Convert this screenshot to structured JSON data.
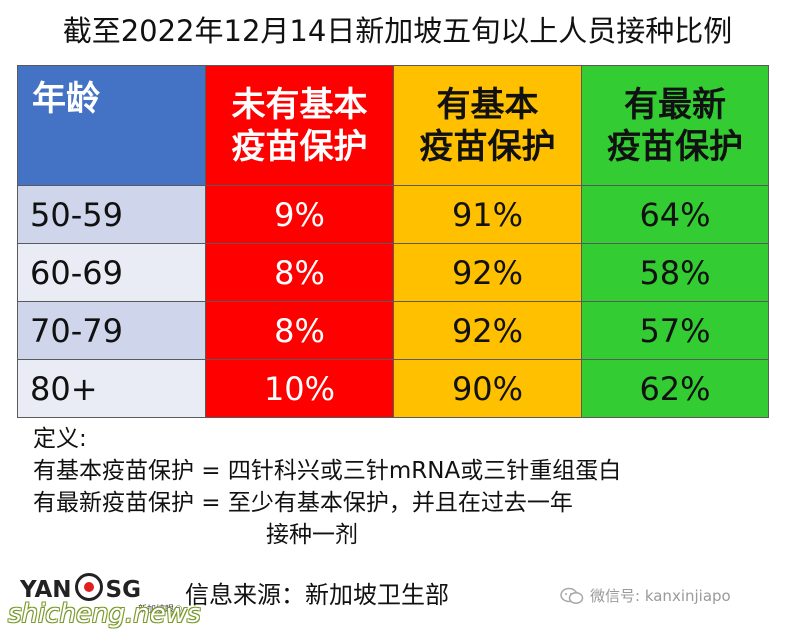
{
  "title": "截至2022年12月14日新加坡五旬以上人员接种比例",
  "table": {
    "headers": [
      "年龄",
      "未有基本\n疫苗保护",
      "有基本\n疫苗保护",
      "有最新\n疫苗保护"
    ],
    "rows": [
      {
        "age": "50-59",
        "none": "9%",
        "basic": "91%",
        "latest": "64%"
      },
      {
        "age": "60-69",
        "none": "8%",
        "basic": "92%",
        "latest": "58%"
      },
      {
        "age": "70-79",
        "none": "8%",
        "basic": "92%",
        "latest": "57%"
      },
      {
        "age": "80+",
        "none": "10%",
        "basic": "90%",
        "latest": "62%"
      }
    ]
  },
  "colors": {
    "age_header": "#4472c4",
    "no_protection": "#ff0000",
    "basic": "#ffc000",
    "latest": "#33cc33"
  },
  "notes": {
    "heading": "定义:",
    "line1": "有基本疫苗保护 = 四针科兴或三针mRNA或三针重组蛋白",
    "line2": "有最新疫苗保护 = 至少有基本保护，并且在过去一年",
    "line3": "接种一剂"
  },
  "footer": {
    "logo_left": "YAN",
    "logo_right": "SG",
    "logo_sub": "新加坡眼®",
    "source": "信息来源：新加坡卫生部",
    "watermark_site": "shicheng.news",
    "wechat": "微信号: kanxinjiapo"
  }
}
